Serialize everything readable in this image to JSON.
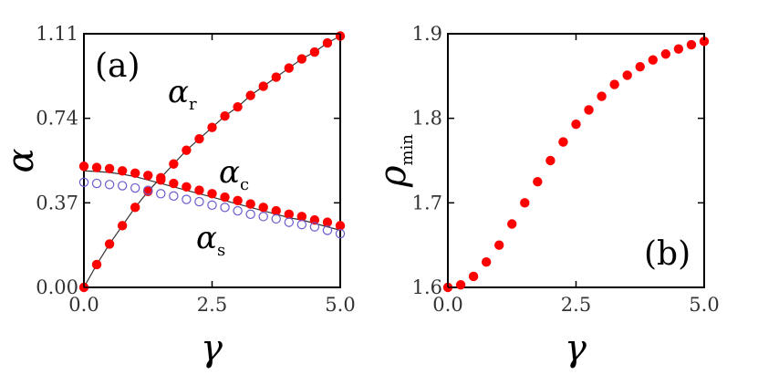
{
  "colors": {
    "filled": "#ff0000",
    "hollow": "#6a5acd",
    "curve": "#333333",
    "axis": "#000000"
  },
  "chart_data": [
    {
      "type": "scatter",
      "panel_label": "(a)",
      "xlabel": "γ",
      "ylabel": "α",
      "xlim": [
        0,
        5
      ],
      "ylim": [
        0,
        1.11
      ],
      "x_ticks": [
        "0.0",
        "2.5",
        "5.0"
      ],
      "y_ticks": [
        "0.00",
        "0.37",
        "0.74",
        "1.11"
      ],
      "series": [
        {
          "name": "αr",
          "marker": "filled",
          "x": [
            0,
            0.25,
            0.5,
            0.75,
            1,
            1.25,
            1.5,
            1.75,
            2,
            2.25,
            2.5,
            2.75,
            3,
            3.25,
            3.5,
            3.75,
            4,
            4.25,
            4.5,
            4.75,
            5
          ],
          "values": [
            0,
            0.1,
            0.19,
            0.27,
            0.35,
            0.42,
            0.48,
            0.54,
            0.6,
            0.65,
            0.7,
            0.75,
            0.79,
            0.84,
            0.88,
            0.92,
            0.96,
            1.0,
            1.03,
            1.07,
            1.1
          ],
          "curve": [
            0,
            0.1,
            0.19,
            0.27,
            0.35,
            0.42,
            0.48,
            0.54,
            0.6,
            0.65,
            0.7,
            0.75,
            0.79,
            0.84,
            0.88,
            0.92,
            0.96,
            1.0,
            1.03,
            1.07,
            1.1
          ]
        },
        {
          "name": "αc",
          "marker": "filled",
          "x": [
            0,
            0.25,
            0.5,
            0.75,
            1,
            1.25,
            1.5,
            1.75,
            2,
            2.25,
            2.5,
            2.75,
            3,
            3.25,
            3.5,
            3.75,
            4,
            4.25,
            4.5,
            4.75,
            5
          ],
          "values": [
            0.53,
            0.525,
            0.52,
            0.51,
            0.5,
            0.49,
            0.47,
            0.455,
            0.44,
            0.425,
            0.41,
            0.395,
            0.38,
            0.365,
            0.35,
            0.335,
            0.32,
            0.31,
            0.295,
            0.285,
            0.27
          ],
          "curve": [
            0.51,
            0.507,
            0.503,
            0.495,
            0.485,
            0.47,
            0.455,
            0.44,
            0.425,
            0.41,
            0.395,
            0.38,
            0.365,
            0.35,
            0.335,
            0.32,
            0.305,
            0.295,
            0.28,
            0.265,
            0.25
          ]
        },
        {
          "name": "αs",
          "marker": "hollow",
          "x": [
            0,
            0.25,
            0.5,
            0.75,
            1,
            1.25,
            1.5,
            1.75,
            2,
            2.25,
            2.5,
            2.75,
            3,
            3.25,
            3.5,
            3.75,
            4,
            4.25,
            4.5,
            4.75,
            5
          ],
          "values": [
            0.46,
            0.455,
            0.45,
            0.445,
            0.435,
            0.425,
            0.41,
            0.4,
            0.385,
            0.375,
            0.36,
            0.35,
            0.335,
            0.32,
            0.31,
            0.3,
            0.285,
            0.275,
            0.265,
            0.25,
            0.235
          ]
        }
      ],
      "labels": {
        "alpha_r": "α",
        "alpha_r_sub": "r",
        "alpha_c": "α",
        "alpha_c_sub": "c",
        "alpha_s": "α",
        "alpha_s_sub": "s"
      }
    },
    {
      "type": "scatter",
      "panel_label": "(b)",
      "xlabel": "γ",
      "ylabel": "ρ",
      "ylabel_sub": "min",
      "xlim": [
        0,
        5
      ],
      "ylim": [
        1.6,
        1.9
      ],
      "x_ticks": [
        "0.0",
        "2.5",
        "5.0"
      ],
      "y_ticks": [
        "1.6",
        "1.7",
        "1.8",
        "1.9"
      ],
      "series": [
        {
          "name": "ρmin",
          "marker": "filled",
          "x": [
            0,
            0.25,
            0.5,
            0.75,
            1,
            1.25,
            1.5,
            1.75,
            2,
            2.25,
            2.5,
            2.75,
            3,
            3.25,
            3.5,
            3.75,
            4,
            4.25,
            4.5,
            4.75,
            5
          ],
          "values": [
            1.6,
            1.603,
            1.613,
            1.63,
            1.65,
            1.675,
            1.7,
            1.725,
            1.75,
            1.772,
            1.793,
            1.81,
            1.826,
            1.84,
            1.851,
            1.861,
            1.869,
            1.876,
            1.882,
            1.887,
            1.891
          ]
        }
      ]
    }
  ]
}
